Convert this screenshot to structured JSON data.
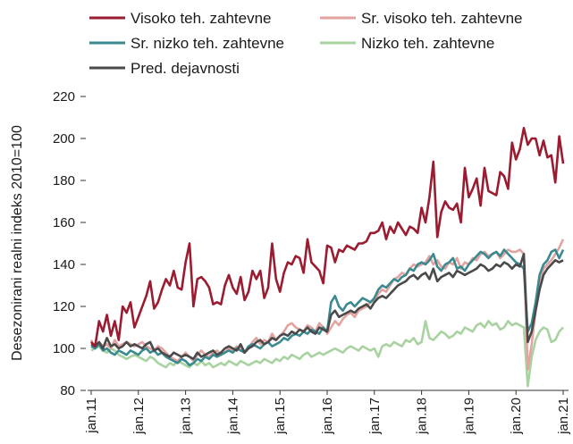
{
  "chart_data": {
    "type": "line",
    "y_label": "Desezonirani realni indeks 2010=100",
    "categories": [
      "jan.11",
      null,
      null,
      null,
      null,
      null,
      null,
      null,
      null,
      null,
      null,
      null,
      "jan.12",
      null,
      null,
      null,
      null,
      null,
      null,
      null,
      null,
      null,
      null,
      null,
      "jan.13",
      null,
      null,
      null,
      null,
      null,
      null,
      null,
      null,
      null,
      null,
      null,
      "jan.14",
      null,
      null,
      null,
      null,
      null,
      null,
      null,
      null,
      null,
      null,
      null,
      "jan.15",
      null,
      null,
      null,
      null,
      null,
      null,
      null,
      null,
      null,
      null,
      null,
      "jan.16",
      null,
      null,
      null,
      null,
      null,
      null,
      null,
      null,
      null,
      null,
      null,
      "jan.17",
      null,
      null,
      null,
      null,
      null,
      null,
      null,
      null,
      null,
      null,
      null,
      "jan.18",
      null,
      null,
      null,
      null,
      null,
      null,
      null,
      null,
      null,
      null,
      null,
      "jan.19",
      null,
      null,
      null,
      null,
      null,
      null,
      null,
      null,
      null,
      null,
      null,
      "jan.20",
      null,
      null,
      null,
      null,
      null,
      null,
      null,
      null,
      null,
      null,
      null,
      "jan.21"
    ],
    "series": [
      {
        "name": "Visoko teh. zahtevne",
        "color": "#9b1b30",
        "values": [
          103,
          101,
          113,
          108,
          116,
          106,
          113,
          104,
          120,
          117,
          122,
          110,
          115,
          120,
          125,
          132,
          119,
          122,
          128,
          133,
          130,
          137,
          129,
          128,
          141,
          150,
          120,
          133,
          134,
          132,
          129,
          121,
          122,
          121,
          130,
          135,
          129,
          126,
          134,
          123,
          127,
          137,
          133,
          137,
          124,
          129,
          150,
          133,
          127,
          136,
          141,
          140,
          144,
          143,
          136,
          152,
          141,
          139,
          137,
          131,
          149,
          148,
          141,
          147,
          146,
          149,
          148,
          147,
          150,
          150,
          151,
          155,
          155,
          156,
          160,
          152,
          158,
          155,
          160,
          157,
          154,
          158,
          157,
          155,
          167,
          160,
          172,
          189,
          153,
          165,
          170,
          167,
          166,
          169,
          160,
          186,
          172,
          176,
          181,
          168,
          186,
          175,
          174,
          173,
          184,
          182,
          176,
          198,
          190,
          195,
          205,
          197,
          200,
          200,
          192,
          199,
          191,
          192,
          179,
          201,
          188
        ]
      },
      {
        "name": "Sr. visoko teh. zahtevne",
        "color": "#e3a3a0",
        "values": [
          104,
          100,
          103,
          101,
          102,
          100,
          104,
          101,
          102,
          103,
          102,
          101,
          102,
          103,
          101,
          100,
          99,
          101,
          100,
          98,
          96,
          95,
          94,
          96,
          98,
          96,
          94,
          97,
          99,
          97,
          96,
          98,
          99,
          97,
          98,
          100,
          99,
          101,
          100,
          98,
          100,
          103,
          105,
          102,
          104,
          103,
          107,
          104,
          106,
          108,
          111,
          112,
          110,
          109,
          108,
          111,
          110,
          108,
          112,
          110,
          107,
          110,
          113,
          111,
          114,
          116,
          117,
          115,
          118,
          119,
          120,
          122,
          123,
          126,
          128,
          127,
          130,
          133,
          134,
          136,
          135,
          138,
          140,
          139,
          140,
          141,
          144,
          140,
          142,
          139,
          138,
          141,
          140,
          143,
          138,
          141,
          140,
          143,
          142,
          145,
          146,
          144,
          145,
          146,
          143,
          145,
          147,
          146,
          146,
          147,
          145,
          90,
          102,
          118,
          130,
          138,
          140,
          142,
          145,
          148,
          152
        ]
      },
      {
        "name": "Sr. nizko teh. zahtevne",
        "color": "#3a8a90",
        "values": [
          101,
          100,
          102,
          99,
          100,
          98,
          97,
          99,
          98,
          97,
          99,
          98,
          97,
          99,
          100,
          98,
          99,
          97,
          98,
          96,
          95,
          94,
          93,
          95,
          94,
          92,
          93,
          95,
          94,
          96,
          95,
          97,
          96,
          97,
          98,
          99,
          98,
          100,
          99,
          98,
          101,
          102,
          101,
          100,
          102,
          103,
          101,
          102,
          103,
          105,
          104,
          106,
          107,
          106,
          108,
          107,
          109,
          108,
          107,
          110,
          108,
          122,
          125,
          120,
          118,
          121,
          122,
          120,
          122,
          124,
          123,
          122,
          124,
          128,
          130,
          129,
          131,
          133,
          132,
          134,
          135,
          138,
          137,
          140,
          141,
          140,
          142,
          145,
          139,
          137,
          140,
          141,
          143,
          138,
          139,
          137,
          140,
          142,
          144,
          146,
          145,
          143,
          145,
          146,
          144,
          147,
          145,
          143,
          141,
          140,
          138,
          108,
          112,
          122,
          135,
          140,
          142,
          146,
          147,
          143,
          147
        ]
      },
      {
        "name": "Nizko teh. zahtevne",
        "color": "#a8d3a0",
        "values": [
          99,
          100,
          101,
          99,
          98,
          100,
          99,
          97,
          96,
          95,
          96,
          97,
          96,
          95,
          94,
          96,
          95,
          93,
          92,
          91,
          93,
          92,
          94,
          93,
          92,
          91,
          93,
          92,
          94,
          92,
          93,
          91,
          92,
          93,
          92,
          94,
          93,
          92,
          94,
          93,
          92,
          93,
          94,
          93,
          95,
          94,
          93,
          95,
          94,
          96,
          95,
          97,
          96,
          95,
          97,
          98,
          96,
          97,
          98,
          97,
          98,
          99,
          100,
          99,
          98,
          100,
          101,
          100,
          99,
          101,
          100,
          99,
          100,
          96,
          101,
          102,
          101,
          103,
          102,
          101,
          104,
          103,
          105,
          102,
          103,
          113,
          105,
          104,
          106,
          108,
          107,
          105,
          106,
          108,
          107,
          110,
          109,
          108,
          111,
          112,
          110,
          113,
          111,
          112,
          109,
          110,
          113,
          111,
          112,
          111,
          110,
          82,
          96,
          104,
          108,
          110,
          109,
          103,
          104,
          108,
          110
        ]
      },
      {
        "name": "Pred. dejavnosti",
        "color": "#4a4a4a",
        "values": [
          102,
          101,
          103,
          100,
          105,
          101,
          102,
          100,
          101,
          103,
          101,
          102,
          101,
          100,
          102,
          103,
          99,
          100,
          98,
          97,
          96,
          98,
          97,
          96,
          97,
          96,
          95,
          98,
          96,
          97,
          98,
          99,
          97,
          98,
          100,
          101,
          100,
          99,
          102,
          98,
          100,
          101,
          103,
          104,
          102,
          103,
          105,
          104,
          106,
          107,
          106,
          108,
          107,
          109,
          108,
          110,
          108,
          107,
          110,
          109,
          108,
          116,
          118,
          115,
          116,
          117,
          118,
          117,
          119,
          120,
          121,
          119,
          122,
          124,
          125,
          124,
          126,
          128,
          130,
          131,
          132,
          134,
          135,
          133,
          135,
          136,
          133,
          138,
          132,
          134,
          135,
          136,
          134,
          137,
          136,
          135,
          136,
          137,
          138,
          140,
          139,
          137,
          138,
          140,
          139,
          141,
          140,
          138,
          140,
          139,
          145,
          103,
          108,
          118,
          128,
          135,
          138,
          140,
          142,
          141,
          142
        ]
      }
    ],
    "ylim": [
      80,
      220
    ],
    "yticks": [
      80,
      100,
      120,
      140,
      160,
      180,
      200,
      220
    ],
    "grid": false
  }
}
